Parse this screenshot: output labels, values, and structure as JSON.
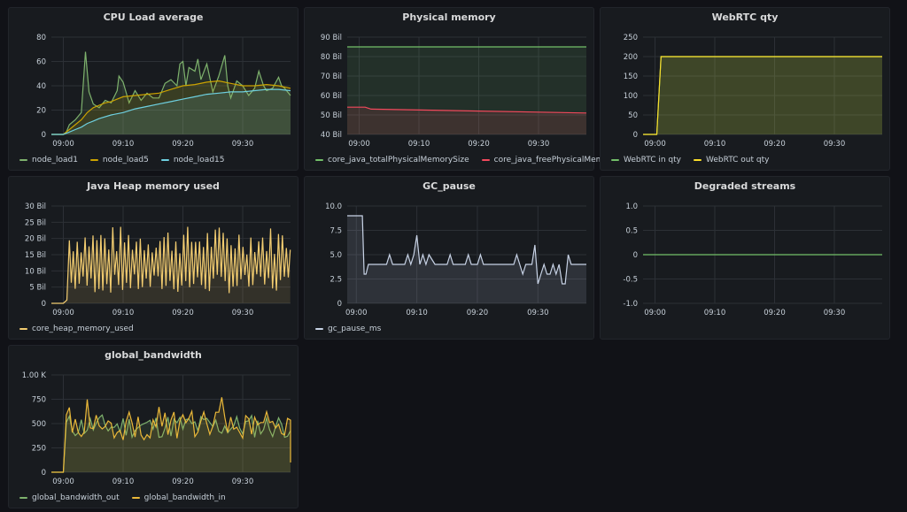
{
  "panels": [
    {
      "id": "cpu",
      "title": "CPU Load average",
      "chart_data": {
        "type": "line",
        "x_ticks": [
          "09:00",
          "09:10",
          "09:20",
          "09:30"
        ],
        "x_range": [
          -2,
          38
        ],
        "y_ticks": [
          "0",
          "20",
          "40",
          "60",
          "80"
        ],
        "y_range": [
          0,
          80
        ],
        "series": [
          {
            "name": "node_load1",
            "color": "#7eb26d",
            "fill": true,
            "values": [
              [
                -2,
                0
              ],
              [
                0,
                0
              ],
              [
                0.5,
                2
              ],
              [
                1,
                8
              ],
              [
                2,
                12
              ],
              [
                3,
                18
              ],
              [
                3.7,
                68
              ],
              [
                4.3,
                35
              ],
              [
                5,
                25
              ],
              [
                6,
                22
              ],
              [
                7,
                28
              ],
              [
                8,
                26
              ],
              [
                9,
                36
              ],
              [
                9.3,
                48
              ],
              [
                10,
                43
              ],
              [
                11,
                26
              ],
              [
                12,
                36
              ],
              [
                13,
                28
              ],
              [
                14,
                34
              ],
              [
                15,
                30
              ],
              [
                16,
                30
              ],
              [
                17,
                42
              ],
              [
                18,
                45
              ],
              [
                19,
                40
              ],
              [
                19.5,
                58
              ],
              [
                20,
                60
              ],
              [
                20.5,
                40
              ],
              [
                21,
                55
              ],
              [
                22,
                52
              ],
              [
                22.5,
                62
              ],
              [
                23,
                45
              ],
              [
                24,
                58
              ],
              [
                25,
                35
              ],
              [
                26,
                48
              ],
              [
                27,
                65
              ],
              [
                27.5,
                40
              ],
              [
                28,
                30
              ],
              [
                29,
                44
              ],
              [
                30,
                40
              ],
              [
                31,
                32
              ],
              [
                32,
                38
              ],
              [
                32.7,
                52
              ],
              [
                33.5,
                40
              ],
              [
                34,
                36
              ],
              [
                35,
                38
              ],
              [
                36,
                47
              ],
              [
                36.5,
                40
              ],
              [
                37,
                38
              ],
              [
                38,
                32
              ]
            ]
          },
          {
            "name": "node_load5",
            "color": "#cca300",
            "fill": true,
            "values": [
              [
                -2,
                0
              ],
              [
                0,
                0
              ],
              [
                1,
                4
              ],
              [
                2,
                8
              ],
              [
                3,
                12
              ],
              [
                4,
                18
              ],
              [
                5,
                22
              ],
              [
                6,
                24
              ],
              [
                7,
                26
              ],
              [
                8,
                27
              ],
              [
                9,
                29
              ],
              [
                10,
                31
              ],
              [
                12,
                32
              ],
              [
                14,
                33
              ],
              [
                16,
                34
              ],
              [
                18,
                37
              ],
              [
                20,
                40
              ],
              [
                22,
                41
              ],
              [
                24,
                43
              ],
              [
                26,
                44
              ],
              [
                28,
                42
              ],
              [
                30,
                40
              ],
              [
                32,
                40
              ],
              [
                34,
                41
              ],
              [
                36,
                40
              ],
              [
                38,
                38
              ]
            ]
          },
          {
            "name": "node_load15",
            "color": "#6ed0e0",
            "fill": true,
            "values": [
              [
                -2,
                0
              ],
              [
                0,
                0
              ],
              [
                1,
                2
              ],
              [
                2,
                4
              ],
              [
                3,
                6
              ],
              [
                4,
                9
              ],
              [
                5,
                11
              ],
              [
                6,
                13
              ],
              [
                8,
                16
              ],
              [
                10,
                18
              ],
              [
                12,
                21
              ],
              [
                14,
                23
              ],
              [
                16,
                25
              ],
              [
                18,
                27
              ],
              [
                20,
                29
              ],
              [
                22,
                31
              ],
              [
                24,
                33
              ],
              [
                26,
                34
              ],
              [
                28,
                35
              ],
              [
                30,
                35
              ],
              [
                32,
                36
              ],
              [
                34,
                37
              ],
              [
                36,
                37
              ],
              [
                38,
                36
              ]
            ]
          }
        ]
      }
    },
    {
      "id": "physmem",
      "title": "Physical memory",
      "chart_data": {
        "type": "line",
        "x_ticks": [
          "09:00",
          "09:10",
          "09:20",
          "09:30"
        ],
        "x_range": [
          -2,
          38
        ],
        "y_ticks": [
          "40 Bil",
          "50 Bil",
          "60 Bil",
          "70 Bil",
          "80 Bil",
          "90 Bil"
        ],
        "y_range": [
          40,
          90
        ],
        "series": [
          {
            "name": "core_java_totalPhysicalMemorySize",
            "color": "#73bf69",
            "fill": true,
            "values": [
              [
                -2,
                85
              ],
              [
                38,
                85
              ]
            ]
          },
          {
            "name": "core_java_freePhysicalMemorySize",
            "color": "#f2495c",
            "fill": true,
            "values": [
              [
                -2,
                54
              ],
              [
                1,
                54
              ],
              [
                2,
                53
              ],
              [
                38,
                51
              ]
            ]
          }
        ]
      }
    },
    {
      "id": "webrtc",
      "title": "WebRTC qty",
      "chart_data": {
        "type": "line",
        "x_ticks": [
          "09:00",
          "09:10",
          "09:20",
          "09:30"
        ],
        "x_range": [
          -2,
          38
        ],
        "y_ticks": [
          "0",
          "50",
          "100",
          "150",
          "200",
          "250"
        ],
        "y_range": [
          0,
          250
        ],
        "series": [
          {
            "name": "WebRTC in qty",
            "color": "#73bf69",
            "fill": true,
            "values": [
              [
                -2,
                0
              ],
              [
                0.3,
                0
              ],
              [
                1,
                200
              ],
              [
                38,
                200
              ]
            ]
          },
          {
            "name": "WebRTC out qty",
            "color": "#fade2a",
            "fill": true,
            "values": [
              [
                -2,
                0
              ],
              [
                0.3,
                0
              ],
              [
                1,
                200
              ],
              [
                38,
                200
              ]
            ]
          }
        ]
      }
    },
    {
      "id": "heap",
      "title": "Java Heap memory used",
      "chart_data": {
        "type": "line",
        "x_ticks": [
          "09:00",
          "09:10",
          "09:20",
          "09:30"
        ],
        "x_range": [
          -2,
          38
        ],
        "y_ticks": [
          "0",
          "5 Bil",
          "10 Bil",
          "15 Bil",
          "20 Bil",
          "25 Bil",
          "30 Bil"
        ],
        "y_range": [
          0,
          30
        ],
        "series": [
          {
            "name": "core_heap_memory_used",
            "color": "#f2cc70",
            "fill": true,
            "generator": "heap"
          }
        ]
      }
    },
    {
      "id": "gc",
      "title": "GC_pause",
      "chart_data": {
        "type": "line",
        "x_ticks": [
          "09:00",
          "09:10",
          "09:20",
          "09:30"
        ],
        "x_range": [
          -1.5,
          38
        ],
        "y_ticks": [
          "0",
          "2.5",
          "5.0",
          "7.5",
          "10.0"
        ],
        "y_range": [
          0,
          10
        ],
        "series": [
          {
            "name": "gc_pause_ms",
            "color": "#c8d3e6",
            "fill": true,
            "values": [
              [
                -1.5,
                9
              ],
              [
                1,
                9
              ],
              [
                1.3,
                3
              ],
              [
                1.6,
                3
              ],
              [
                2,
                4
              ],
              [
                5,
                4
              ],
              [
                5.5,
                5
              ],
              [
                6,
                4
              ],
              [
                8,
                4
              ],
              [
                8.5,
                5
              ],
              [
                9,
                4
              ],
              [
                9.5,
                5
              ],
              [
                10,
                7
              ],
              [
                10.5,
                4
              ],
              [
                11,
                5
              ],
              [
                11.5,
                4
              ],
              [
                12,
                5
              ],
              [
                13,
                4
              ],
              [
                15,
                4
              ],
              [
                15.5,
                5
              ],
              [
                16,
                4
              ],
              [
                18,
                4
              ],
              [
                18.5,
                5
              ],
              [
                19,
                4
              ],
              [
                20,
                4
              ],
              [
                20.5,
                5
              ],
              [
                21,
                4
              ],
              [
                26,
                4
              ],
              [
                26.5,
                5
              ],
              [
                27,
                4
              ],
              [
                27.5,
                3
              ],
              [
                28,
                4
              ],
              [
                29,
                4
              ],
              [
                29.5,
                6
              ],
              [
                30,
                2
              ],
              [
                30.5,
                3
              ],
              [
                31,
                4
              ],
              [
                31.5,
                3
              ],
              [
                32,
                3
              ],
              [
                32.5,
                4
              ],
              [
                33,
                3
              ],
              [
                33.5,
                4
              ],
              [
                34,
                2
              ],
              [
                34.5,
                2
              ],
              [
                35,
                5
              ],
              [
                35.5,
                4
              ],
              [
                38,
                4
              ]
            ]
          }
        ]
      }
    },
    {
      "id": "degraded",
      "title": "Degraded streams",
      "chart_data": {
        "type": "line",
        "x_ticks": [
          "09:00",
          "09:10",
          "09:20",
          "09:30"
        ],
        "x_range": [
          -2,
          38
        ],
        "y_ticks": [
          "-1.0",
          "-0.5",
          "0",
          "0.5",
          "1.0"
        ],
        "y_range": [
          -1,
          1
        ],
        "series": [
          {
            "name": "",
            "color": "#73bf69",
            "fill": false,
            "values": [
              [
                -2,
                0
              ],
              [
                38,
                0
              ]
            ]
          }
        ]
      }
    },
    {
      "id": "bandwidth",
      "title": "global_bandwidth",
      "chart_data": {
        "type": "line",
        "x_ticks": [
          "09:00",
          "09:10",
          "09:20",
          "09:30"
        ],
        "x_range": [
          -2,
          38
        ],
        "y_ticks": [
          "0",
          "250",
          "500",
          "750",
          "1.00 K"
        ],
        "y_range": [
          0,
          1000
        ],
        "series": [
          {
            "name": "global_bandwidth_out",
            "color": "#7eb26d",
            "fill": true,
            "generator": "bw_out"
          },
          {
            "name": "global_bandwidth_in",
            "color": "#eab839",
            "fill": true,
            "generator": "bw_in"
          }
        ]
      }
    }
  ]
}
